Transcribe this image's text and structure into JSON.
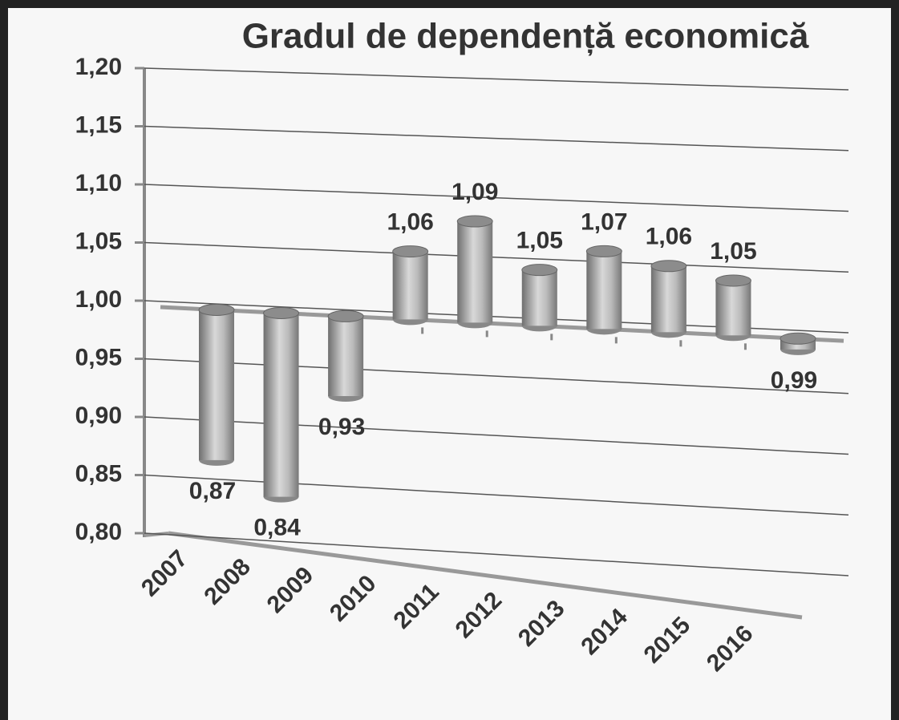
{
  "chart_data": {
    "type": "bar",
    "title": "Gradul de dependență economică",
    "categories": [
      "2007",
      "2008",
      "2009",
      "2010",
      "2011",
      "2012",
      "2013",
      "2014",
      "2015",
      "2016"
    ],
    "values": [
      0.87,
      0.84,
      0.93,
      1.06,
      1.09,
      1.05,
      1.07,
      1.06,
      1.05,
      0.99
    ],
    "value_labels": [
      "0,87",
      "0,84",
      "0,93",
      "1,06",
      "1,09",
      "1,05",
      "1,07",
      "1,06",
      "1,05",
      "0,99"
    ],
    "color": "#8c8c8c",
    "base": 1,
    "ylim": [
      0.8,
      1.2
    ],
    "yticks": [
      {
        "value": 0.8,
        "label": "0,80"
      },
      {
        "value": 0.85,
        "label": "0,85"
      },
      {
        "value": 0.9,
        "label": "0,90"
      },
      {
        "value": 0.95,
        "label": "0,95"
      },
      {
        "value": 1.0,
        "label": "1,00"
      },
      {
        "value": 1.05,
        "label": "1,05"
      },
      {
        "value": 1.1,
        "label": "1,10"
      },
      {
        "value": 1.15,
        "label": "1,15"
      },
      {
        "value": 1.2,
        "label": "1,20"
      }
    ],
    "grid": true
  }
}
